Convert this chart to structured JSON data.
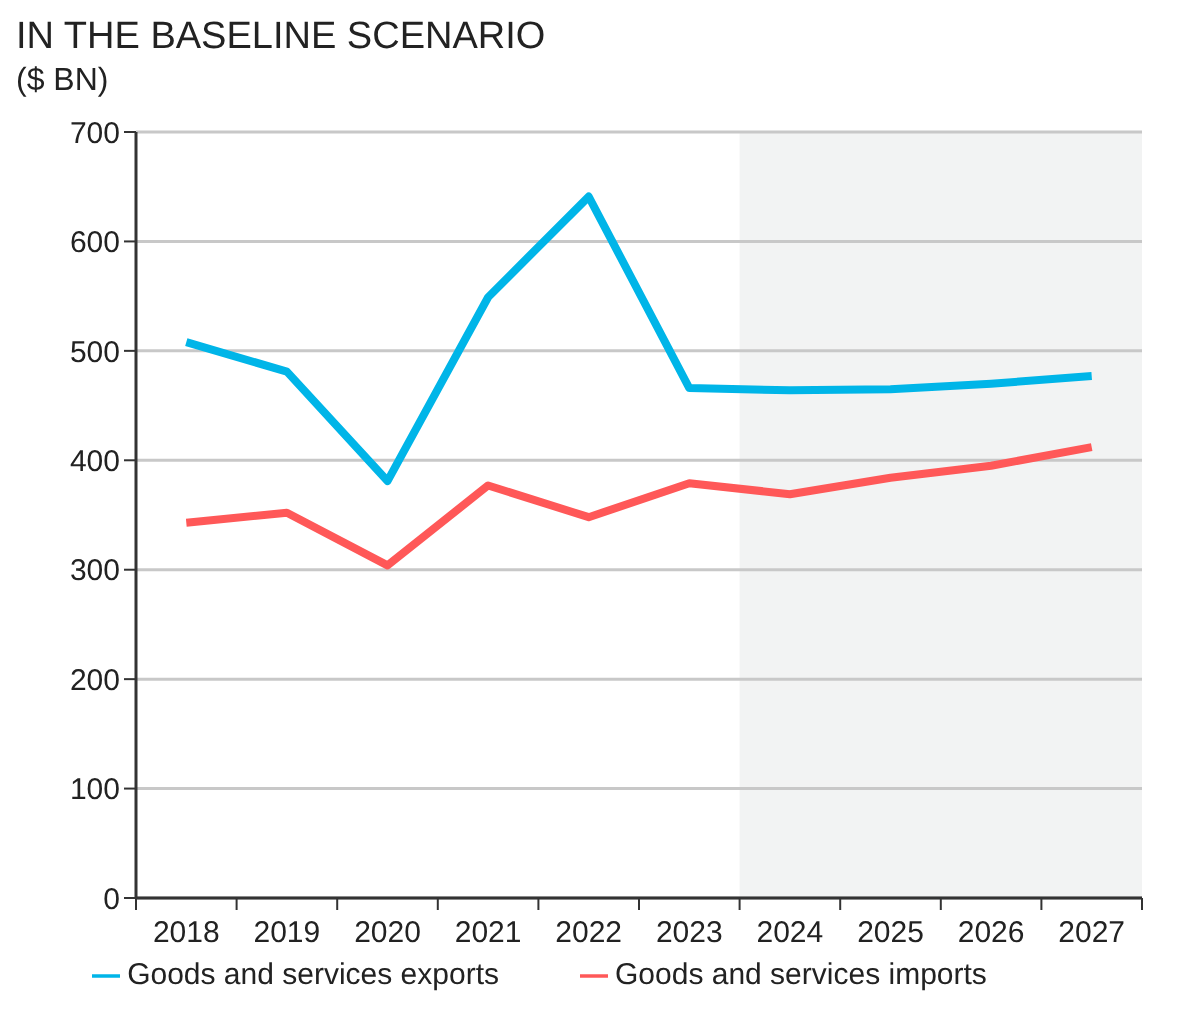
{
  "chart_data": {
    "type": "line",
    "title": "IN THE BASELINE SCENARIO",
    "subtitle": "($ BN)",
    "categories": [
      "2018",
      "2019",
      "2020",
      "2021",
      "2022",
      "2023",
      "2024",
      "2025",
      "2026",
      "2027"
    ],
    "series": [
      {
        "name": "Goods and services exports",
        "color": "#00b5e8",
        "values": [
          508,
          481,
          381,
          549,
          641,
          466,
          464,
          465,
          470,
          477
        ]
      },
      {
        "name": "Goods and services imports",
        "color": "#ff5858",
        "values": [
          343,
          352,
          304,
          377,
          348,
          379,
          369,
          384,
          395,
          412
        ]
      }
    ],
    "ylim": [
      0,
      700
    ],
    "yticks": [
      0,
      100,
      200,
      300,
      400,
      500,
      600,
      700
    ],
    "bands": [
      {
        "axis": "x",
        "from": "2024",
        "to": "2027",
        "color": "#f2f3f3"
      }
    ],
    "grid": "y",
    "legend": "bottom",
    "marker": "none",
    "line_style": "solid"
  }
}
